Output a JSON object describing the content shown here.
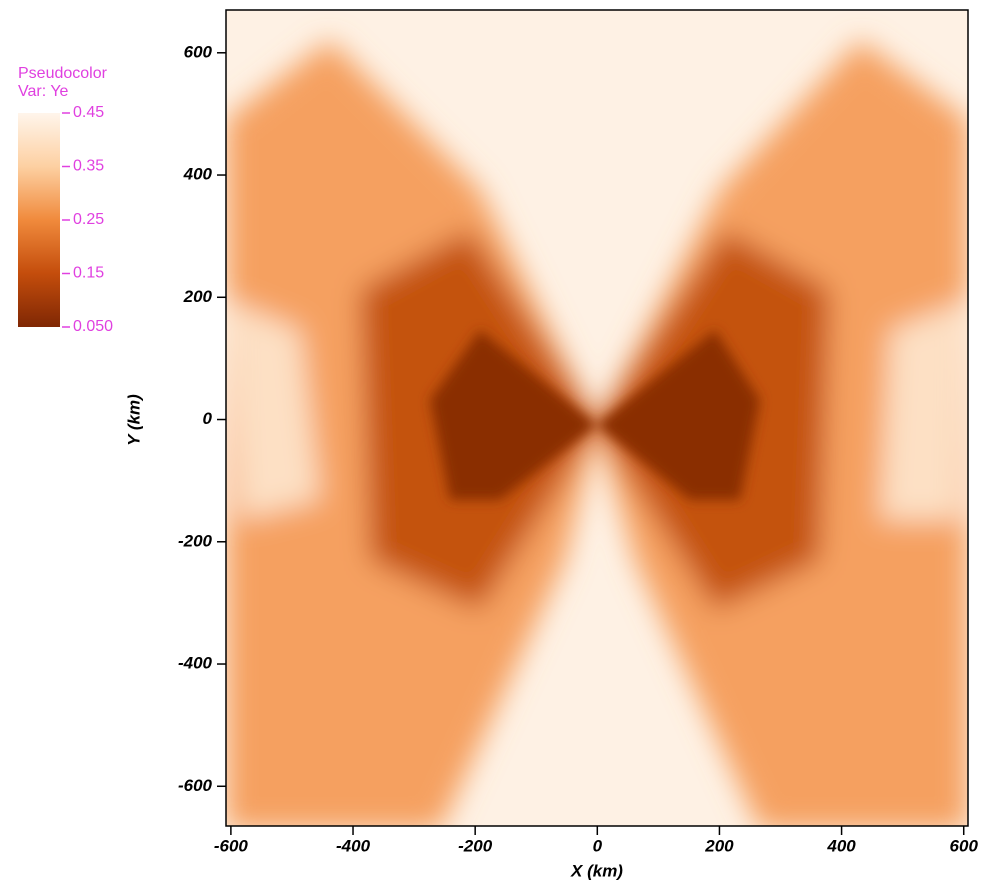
{
  "chart_data": {
    "type": "heatmap",
    "legend_title": "Pseudocolor",
    "variable_label": "Var: Ye",
    "xlabel": "X (km)",
    "ylabel": "Y (km)",
    "xlim": [
      -608,
      607
    ],
    "ylim": [
      -665,
      670
    ],
    "xticks": [
      -600,
      -400,
      -200,
      0,
      200,
      400,
      600
    ],
    "yticks": [
      -600,
      -400,
      -200,
      0,
      200,
      400,
      600
    ],
    "clim": [
      0.05,
      0.45
    ],
    "colorbar_ticks": [
      0.45,
      0.35,
      0.25,
      0.15,
      {
        "value": 0.05,
        "label": "0.050"
      }
    ],
    "colormap": [
      "#7f2704",
      "#c44d0c",
      "#f08a3c",
      "#fdd0a2",
      "#fff5eb"
    ],
    "label_color": "#e040e0"
  }
}
